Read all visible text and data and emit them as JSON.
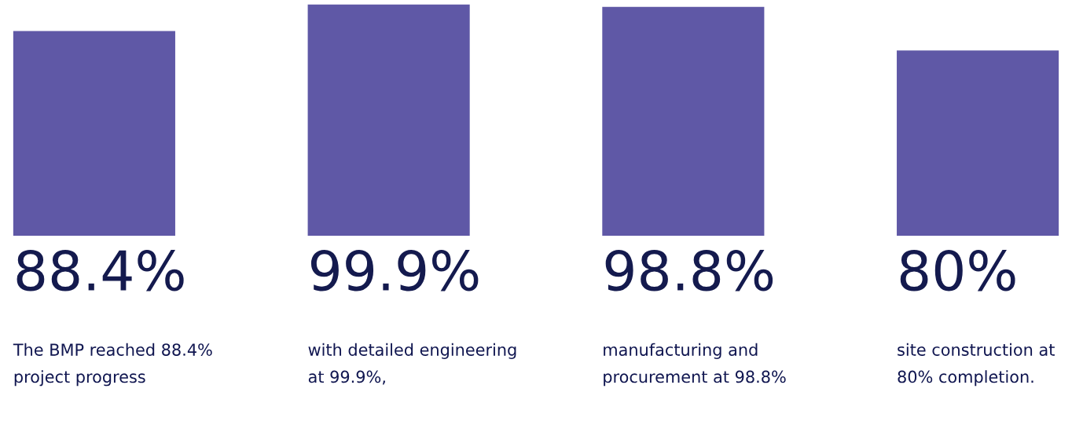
{
  "chart_data": {
    "type": "bar",
    "categories": [
      null,
      null,
      null,
      null
    ],
    "annotations": [
      "The BMP reached 88.4%\nproject progress",
      "with detailed engineering\nat 99.9%,",
      "manufacturing and\nprocurement at 98.8%",
      "site construction at\n80% completion."
    ],
    "values": [
      88.4,
      99.9,
      98.8,
      80
    ],
    "value_labels": [
      "88.4%",
      "99.9%",
      "98.8%",
      "80%"
    ],
    "color": "#5f58a6"
  }
}
